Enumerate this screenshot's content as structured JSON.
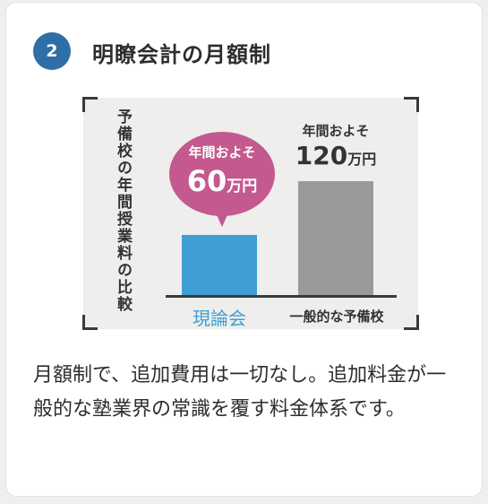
{
  "badge": {
    "number": "2"
  },
  "title": "明瞭会計の月額制",
  "chart_data": {
    "type": "bar",
    "title": "予備校の年間授業料の比較",
    "categories": [
      "現論会",
      "一般的な予備校"
    ],
    "values": [
      60,
      120
    ],
    "unit": "万円",
    "annotations": [
      {
        "prefix": "年間およそ",
        "value": "60",
        "unit": "万円"
      },
      {
        "prefix": "年間およそ",
        "value": "120",
        "unit": "万円"
      }
    ],
    "colors": [
      "#3f9fd4",
      "#9a9a9a"
    ],
    "bubble_color": "#c4598f"
  },
  "description": "月額制で、追加費用は一切なし。追加料金が一般的な塾業界の常識を覆す料金体系です。"
}
